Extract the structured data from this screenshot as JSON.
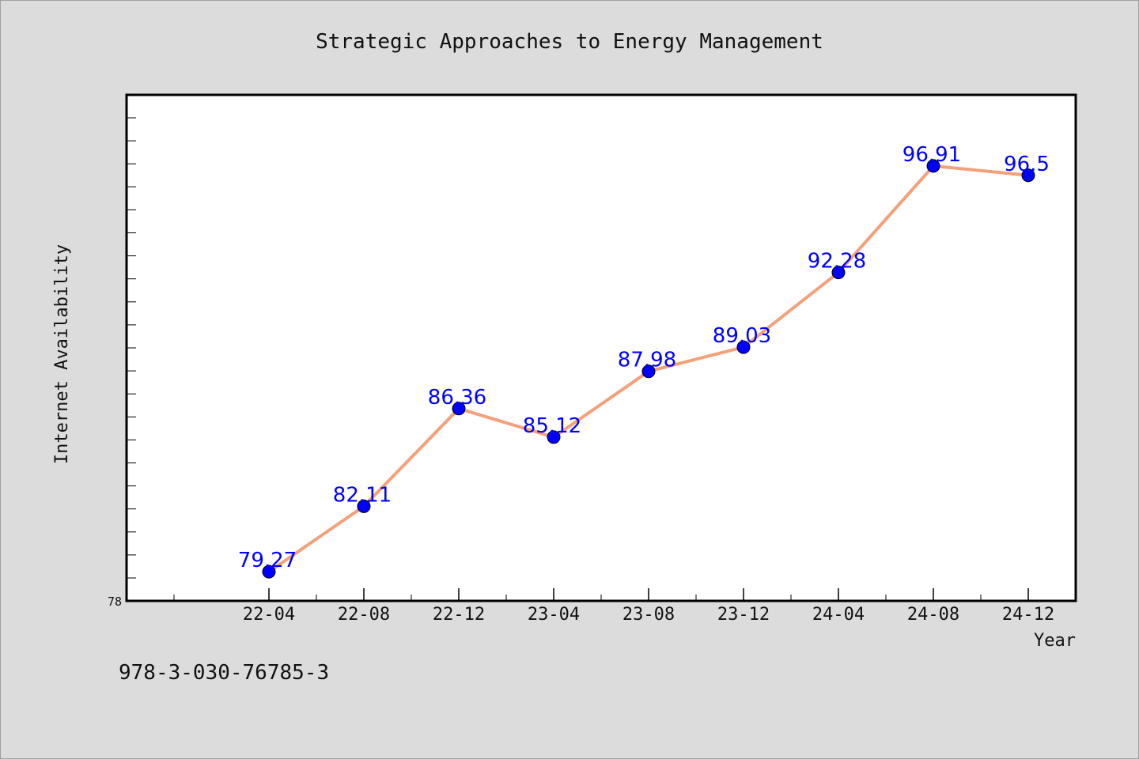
{
  "chart_data": {
    "type": "line",
    "title": "Strategic Approaches to Energy Management",
    "xlabel": "Year",
    "ylabel": "Internet Availability",
    "categories": [
      "22-04",
      "22-08",
      "22-12",
      "23-04",
      "23-08",
      "23-12",
      "24-04",
      "24-08",
      "24-12"
    ],
    "values": [
      79.27,
      82.11,
      86.36,
      85.12,
      87.98,
      89.03,
      92.28,
      96.91,
      96.5
    ],
    "data_labels": [
      "79.27",
      "82.11",
      "86.36",
      "85.12",
      "87.98",
      "89.03",
      "92.28",
      "96.91",
      "96.5"
    ],
    "ylim": [
      78,
      100
    ],
    "y_tick_labels": [
      "78"
    ],
    "grid": false,
    "line_color": "#f4a07a",
    "marker_color": "#0000ff",
    "label_color": "#0000ff"
  },
  "footer": {
    "isbn": "978-3-030-76785-3"
  }
}
